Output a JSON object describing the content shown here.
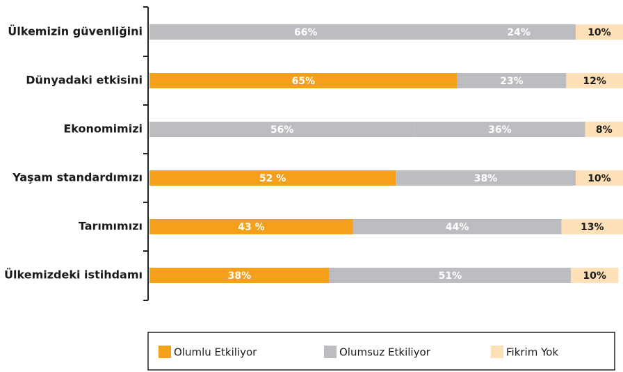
{
  "chart_data": {
    "type": "stacked_barh",
    "categories": [
      "Ülkemizin güvenliğini",
      "Dünyadaki etkisini",
      "Ekonomimizi",
      "Yaşam standardımızı",
      "Tarımımızı",
      "Ülkemizdeki istihdamı"
    ],
    "series": [
      {
        "name": "Olumlu Etkiliyor",
        "color": "#f5a01a",
        "colors": [
          "#bcbdc0",
          "#f5a01a",
          "#bcbdc0",
          "#f5a01a",
          "#f5a01a",
          "#f5a01a"
        ],
        "values": [
          66,
          65,
          56,
          52,
          43,
          38
        ],
        "value_labels": [
          "66%",
          "65%",
          "56%",
          "52 %",
          "43 %",
          "38%"
        ]
      },
      {
        "name": "Olumsuz Etkiliyor",
        "color": "#bcbdc0",
        "values": [
          24,
          23,
          36,
          38,
          44,
          51
        ],
        "value_labels": [
          "24%",
          "23%",
          "36%",
          "38%",
          "44%",
          "51%"
        ]
      },
      {
        "name": "Fikrim Yok",
        "color": "#fde0b8",
        "values": [
          10,
          12,
          8,
          10,
          13,
          10
        ],
        "value_labels": [
          "10%",
          "12%",
          "8%",
          "10%",
          "13%",
          "10%"
        ]
      }
    ],
    "xlim": [
      0,
      100
    ],
    "legend": "bottom"
  }
}
